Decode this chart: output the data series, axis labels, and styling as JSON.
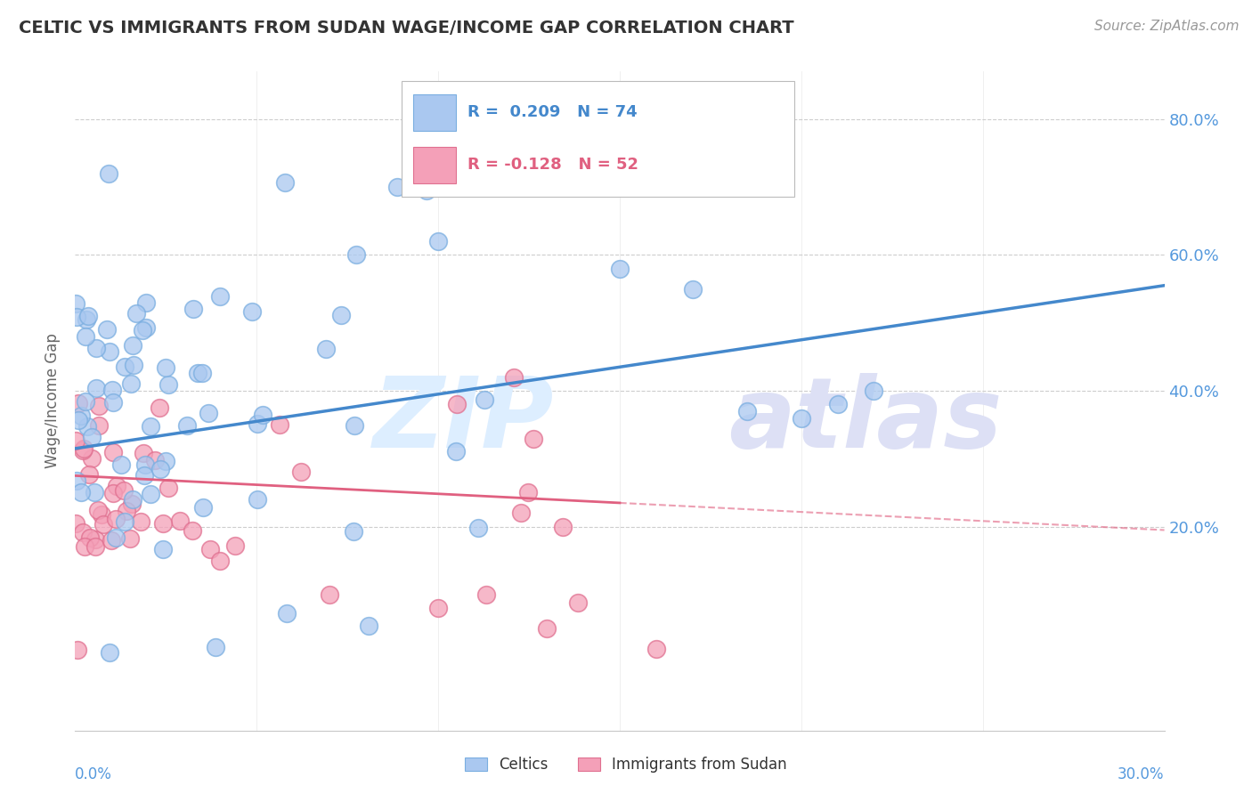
{
  "title": "CELTIC VS IMMIGRANTS FROM SUDAN WAGE/INCOME GAP CORRELATION CHART",
  "source": "Source: ZipAtlas.com",
  "ylabel": "Wage/Income Gap",
  "ytick_vals": [
    0.8,
    0.6,
    0.4,
    0.2
  ],
  "ytick_labels": [
    "80.0%",
    "60.0%",
    "40.0%",
    "20.0%"
  ],
  "xmin": 0.0,
  "xmax": 0.3,
  "ymin": -0.1,
  "ymax": 0.87,
  "celtics_color": "#aac8f0",
  "celtics_edge_color": "#7aaee0",
  "sudan_color": "#f4a0b8",
  "sudan_edge_color": "#e07090",
  "celtics_line_color": "#4488cc",
  "sudan_line_color": "#e06080",
  "celtics_N": 74,
  "sudan_N": 52,
  "celtics_R": 0.209,
  "sudan_R": -0.128,
  "blue_line_x0": 0.0,
  "blue_line_y0": 0.315,
  "blue_line_x1": 0.3,
  "blue_line_y1": 0.555,
  "pink_line_x0": 0.0,
  "pink_line_y0": 0.275,
  "pink_line_x1_solid": 0.15,
  "pink_line_y1_solid": 0.235,
  "pink_line_x1_dashed": 0.3,
  "pink_line_y1_dashed": 0.135,
  "background_color": "#ffffff",
  "grid_color": "#c8c8c8",
  "ytick_color": "#5599dd",
  "xtick_color": "#5599dd"
}
